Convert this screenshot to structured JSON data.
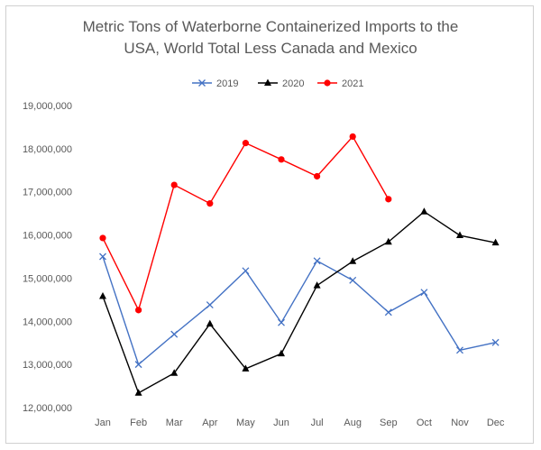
{
  "chart_data": {
    "type": "line",
    "title_line1": "Metric Tons of Waterborne Containerized Imports to the",
    "title_line2": "USA, World Total Less Canada and Mexico",
    "xlabel": "",
    "ylabel": "",
    "categories": [
      "Jan",
      "Feb",
      "Mar",
      "Apr",
      "May",
      "Jun",
      "Jul",
      "Aug",
      "Sep",
      "Oct",
      "Nov",
      "Dec"
    ],
    "ylim": [
      12000000,
      19000000
    ],
    "yticks": [
      "12,000,000",
      "13,000,000",
      "14,000,000",
      "15,000,000",
      "16,000,000",
      "17,000,000",
      "18,000,000",
      "19,000,000"
    ],
    "grid": false,
    "legend_position": "top",
    "series": [
      {
        "name": "2019",
        "color": "#4472c4",
        "marker": "x",
        "values": [
          15500000,
          13000000,
          13700000,
          14380000,
          15170000,
          13970000,
          15400000,
          14950000,
          14210000,
          14670000,
          13330000,
          13510000
        ]
      },
      {
        "name": "2020",
        "color": "#000000",
        "marker": "triangle",
        "values": [
          14580000,
          12340000,
          12800000,
          13940000,
          12900000,
          13250000,
          14830000,
          15390000,
          15840000,
          16540000,
          15990000,
          15820000
        ]
      },
      {
        "name": "2021",
        "color": "#ff0000",
        "marker": "circle",
        "values": [
          15930000,
          14260000,
          17160000,
          16730000,
          18130000,
          17750000,
          17360000,
          18280000,
          16830000,
          null,
          null,
          null
        ]
      }
    ]
  }
}
